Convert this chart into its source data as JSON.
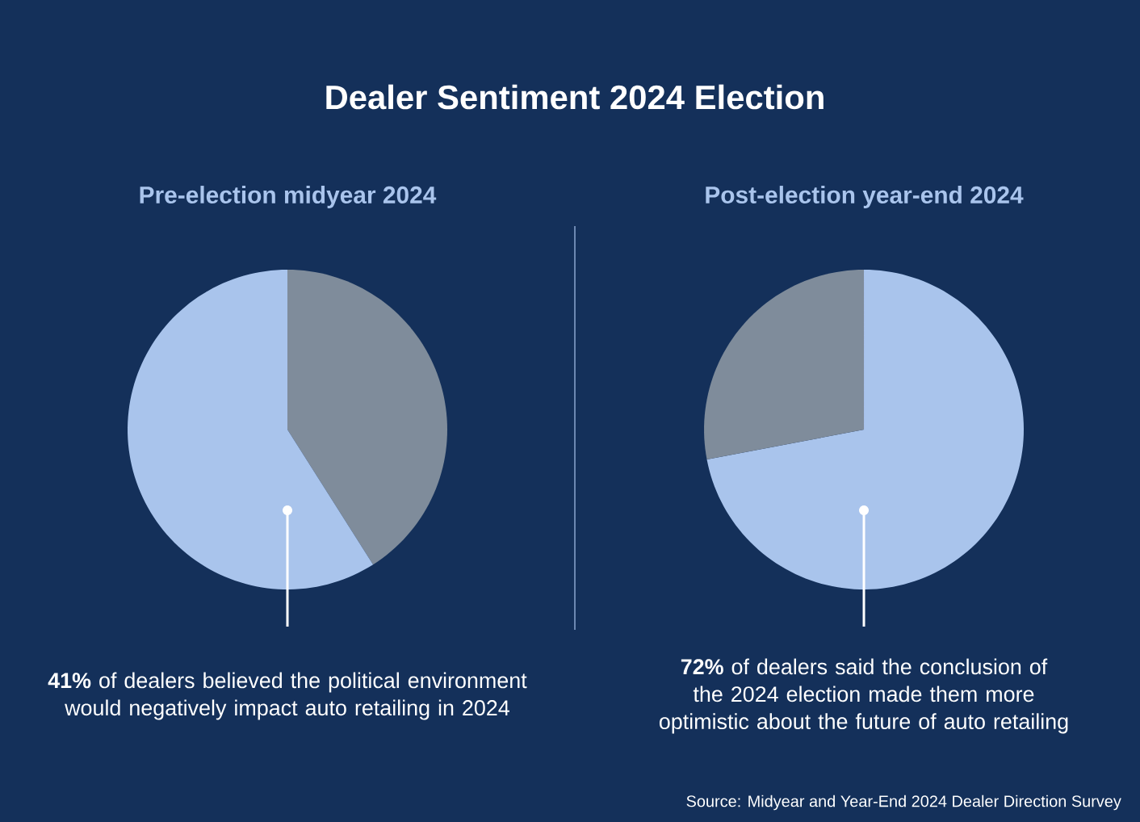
{
  "chart_data": [
    {
      "type": "pie",
      "title": "Dealer Sentiment 2024 Election",
      "subtitle": "Pre-election midyear 2024",
      "categories": [
        null,
        null
      ],
      "values": [
        41,
        59
      ],
      "colors": [
        "#7f8c9b",
        "#a9c4ec"
      ],
      "annotations": [
        "**41%** of dealers believed the political environment would negatively impact auto retailing in 2024"
      ]
    },
    {
      "type": "pie",
      "subtitle": "Post-election year-end 2024",
      "categories": [
        null,
        null
      ],
      "values": [
        72,
        28
      ],
      "colors": [
        "#a9c4ec",
        "#7f8c9b"
      ],
      "annotations": [
        "**72%** of dealers said the conclusion of the 2024 election made them more optimistic about the future of auto retailing",
        "Source: Midyear and Year-End 2024 Dealer Direction Survey"
      ]
    }
  ]
}
